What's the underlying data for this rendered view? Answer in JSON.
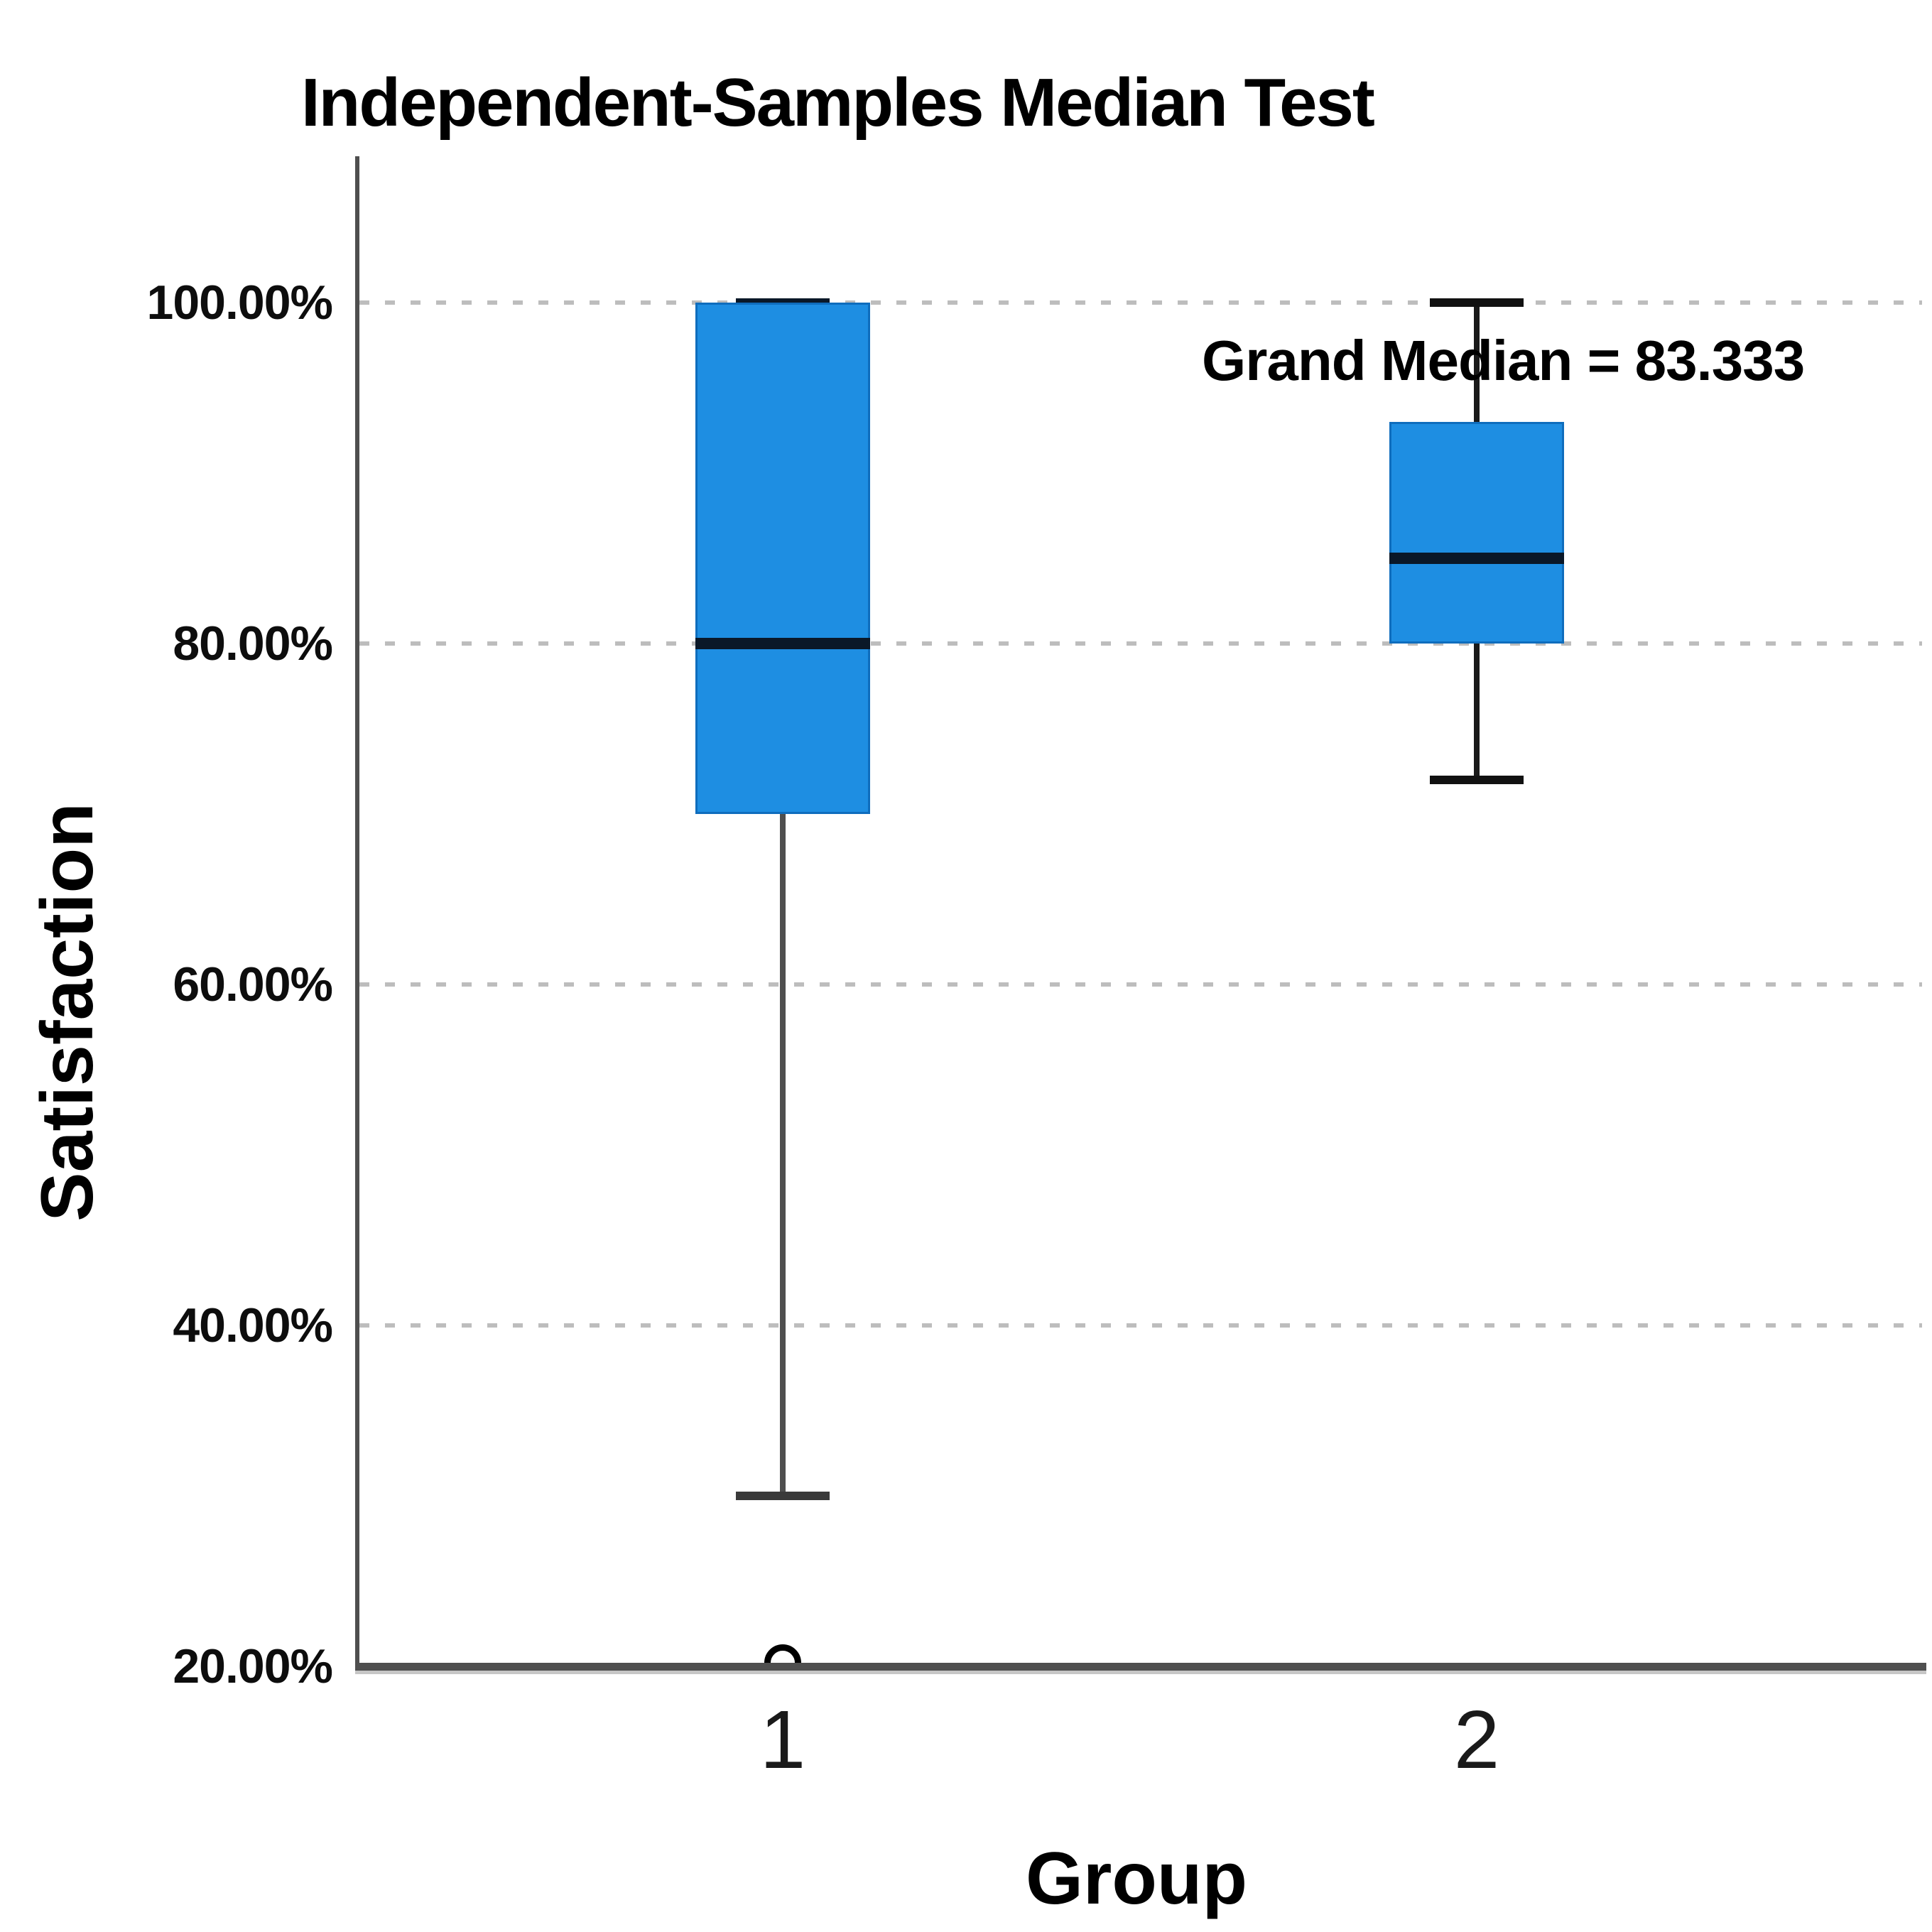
{
  "chart_data": {
    "type": "boxplot",
    "title": "Independent-Samples Median Test",
    "annotation": "Grand Median = 83.333",
    "grand_median": 83.333,
    "xlabel": "Group",
    "ylabel": "Satisfaction",
    "y_axis": {
      "unit": "%",
      "min": 20,
      "max": 105,
      "ticks": [
        "100.00%",
        "80.00%",
        "60.00%",
        "40.00%",
        "20.00%"
      ],
      "tick_values": [
        100,
        80,
        60,
        40,
        20
      ],
      "gridlines": "dashed"
    },
    "categories": [
      "1",
      "2"
    ],
    "groups": [
      {
        "category": "1",
        "whisker_min": 30,
        "q1": 70,
        "median": 80,
        "q3": 100,
        "whisker_max": 100,
        "outliers": [
          20
        ],
        "whisker_color": "#4f4f4f",
        "cap_top_color": "#0a1828",
        "cap_bottom_color": "#3a3a3a"
      },
      {
        "category": "2",
        "whisker_min": 72,
        "q1": 80,
        "median": 85,
        "q3": 93,
        "whisker_max": 100,
        "outliers": [],
        "whisker_color": "#1a1a1a",
        "cap_top_color": "#111111",
        "cap_bottom_color": "#111111"
      }
    ],
    "colors": {
      "box_fill": "#1e8ee2",
      "box_border": "#0f6dbd",
      "median": "#0a1828",
      "gridline": "#bdbdbd",
      "axis": "#4f4f4f",
      "text": "#000000",
      "outlier": "#000000"
    },
    "legend": "none"
  }
}
